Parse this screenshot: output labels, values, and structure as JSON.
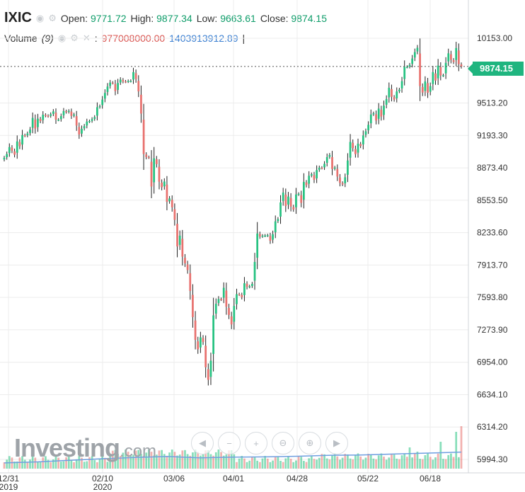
{
  "header": {
    "ticker": "IXIC",
    "open_label": "Open:",
    "open": "9771.72",
    "high_label": "High:",
    "high": "9877.34",
    "low_label": "Low:",
    "low": "9663.61",
    "close_label": "Close:",
    "close": "9874.15",
    "volume_label": "Volume",
    "volume_period": "(9)",
    "volume_value": "977008000.00",
    "volume_ma": "1403913912.89",
    "sep": ":",
    "bar": "|"
  },
  "last_price_tag": "9874.15",
  "logo": {
    "text": "Investing",
    "suffix": ".com"
  },
  "colors": {
    "up": "#26c281",
    "down": "#e8716e",
    "grid": "#ececec",
    "tag": "#1fb57f"
  },
  "toolbar_icons": [
    "arrow-left-icon",
    "zoom-out-icon",
    "zoom-in-icon",
    "zoom-out-alt-icon",
    "zoom-in-alt-icon",
    "arrow-right-icon"
  ],
  "chart_data": {
    "type": "candlestick",
    "y_ticks": [
      "10153.00",
      "9513.20",
      "9193.30",
      "8873.40",
      "8553.50",
      "8233.60",
      "7913.70",
      "7593.80",
      "7273.90",
      "6954.00",
      "6634.10",
      "6314.20",
      "5994.30"
    ],
    "x_labels": [
      {
        "label": "12/31",
        "sub": "2019"
      },
      {
        "label": "02/10",
        "sub": "2020"
      },
      {
        "label": "03/06",
        "sub": ""
      },
      {
        "label": "04/01",
        "sub": ""
      },
      {
        "label": "04/28",
        "sub": ""
      },
      {
        "label": "05/22",
        "sub": ""
      },
      {
        "label": "06/18",
        "sub": ""
      }
    ],
    "ylim": [
      5994.3,
      10153.0
    ],
    "last_close": 9874.15,
    "close": [
      8973,
      9009,
      9078,
      9043,
      9003,
      9134,
      9087,
      9197,
      9191,
      9212,
      9251,
      9366,
      9261,
      9359,
      9335,
      9398,
      9388,
      9384,
      9402,
      9431,
      9349,
      9349,
      9384,
      9434,
      9424,
      9436,
      9386,
      9400,
      9290,
      9203,
      9259,
      9285,
      9330,
      9335,
      9354,
      9374,
      9472,
      9483,
      9547,
      9613,
      9676,
      9715,
      9712,
      9631,
      9711,
      9744,
      9726,
      9725,
      9731,
      9732,
      9818,
      9750,
      9628,
      9409,
      9009,
      8980,
      8976,
      8689,
      8967,
      8910,
      8736,
      8682,
      8738,
      8538,
      8571,
      8484,
      8360,
      8097,
      8204,
      7996,
      7930,
      7864,
      7658,
      7400,
      7174,
      7082,
      7200,
      7154,
      6904,
      6781,
      6969,
      7417,
      7531,
      7578,
      7574,
      7689,
      7502,
      7421,
      7327,
      7510,
      7626,
      7623,
      7596,
      7734,
      7698,
      7704,
      7727,
      7944,
      8225,
      8195,
      8204,
      8205,
      8208,
      8154,
      8218,
      8345,
      8367,
      8532,
      8629,
      8497,
      8590,
      8491,
      8462,
      8610,
      8617,
      8528,
      8734,
      8703,
      8795,
      8810,
      8755,
      8851,
      8875,
      8873,
      8913,
      8979,
      9000,
      8862,
      8876,
      8787,
      8725,
      8710,
      8780,
      8946,
      9129,
      9068,
      9008,
      9112,
      9089,
      9193,
      9234,
      9298,
      9400,
      9412,
      9340,
      9458,
      9380,
      9487,
      9553,
      9664,
      9574,
      9548,
      9627,
      9645,
      9729,
      9871,
      9871,
      9890,
      9953,
      10016,
      10059,
      9681,
      9617,
      9726,
      9615,
      9680,
      9818,
      9735,
      9883,
      9785,
      9788,
      9910,
      10004,
      9940,
      9918,
      10056,
      9897,
      9874
    ],
    "volume_ma_values": [
      1.8,
      2.1,
      2.6,
      3.1,
      3.5,
      3.8,
      3.4,
      3.6,
      3.7,
      3.9,
      4.2,
      4.3,
      4.6,
      4.9,
      5.2
    ]
  }
}
